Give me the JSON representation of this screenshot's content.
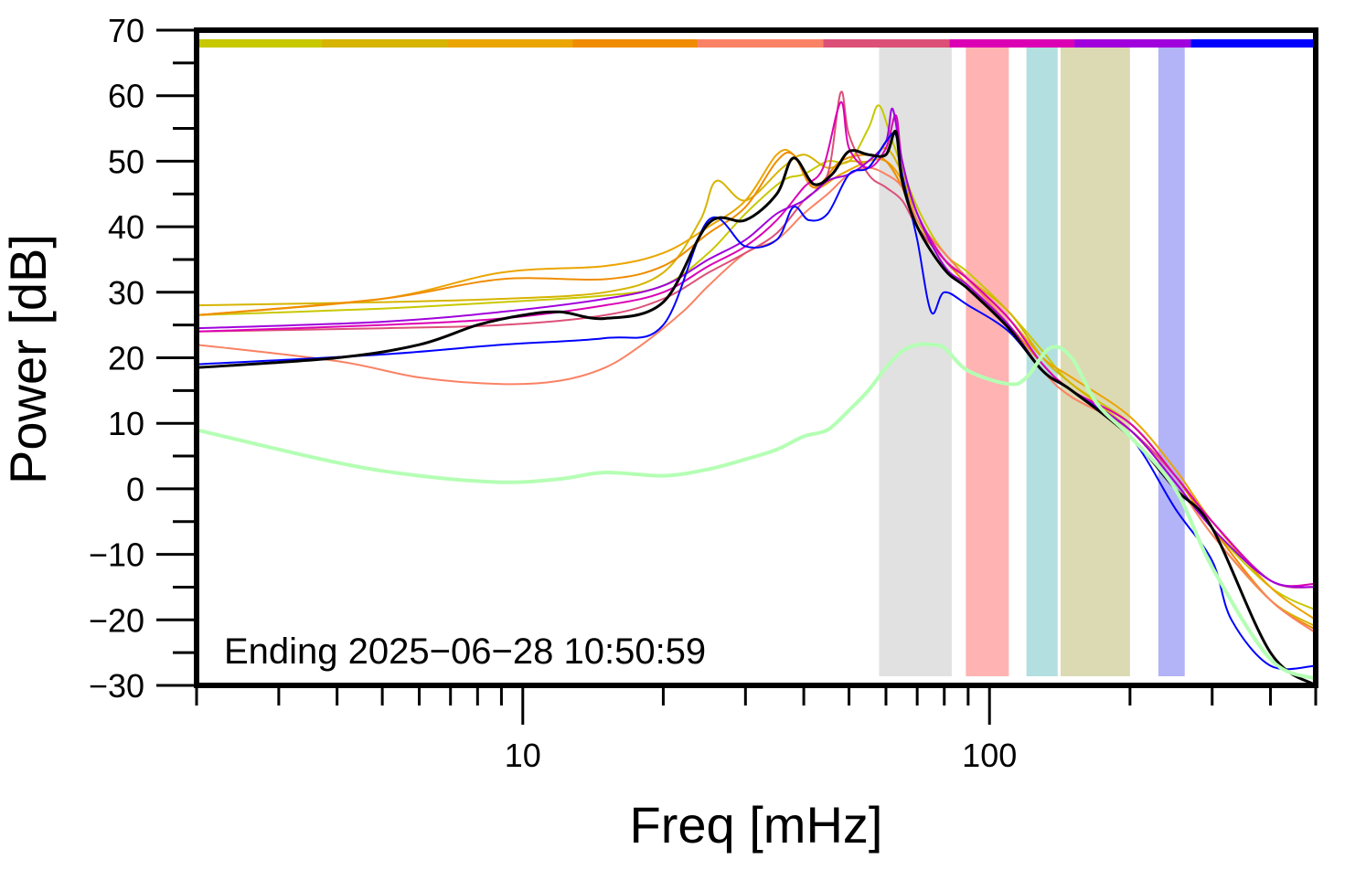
{
  "chart_data": {
    "type": "line",
    "xscale": "log",
    "xlim": [
      2,
      500
    ],
    "ylim": [
      -30,
      70
    ],
    "xlabel": "Freq [mHz]",
    "ylabel": "Power [dB]",
    "annotation": "Ending 2025−06−28 10:50:59",
    "grid": false,
    "x_tick_labels": [
      {
        "value": 10,
        "label": "10"
      },
      {
        "value": 100,
        "label": "100"
      }
    ],
    "y_tick_labels": [
      {
        "value": 70,
        "label": "70"
      },
      {
        "value": 60,
        "label": "60"
      },
      {
        "value": 50,
        "label": "50"
      },
      {
        "value": 40,
        "label": "40"
      },
      {
        "value": 30,
        "label": "30"
      },
      {
        "value": 20,
        "label": "20"
      },
      {
        "value": 10,
        "label": "10"
      },
      {
        "value": 0,
        "label": "0"
      },
      {
        "value": -10,
        "label": "−10"
      },
      {
        "value": -20,
        "label": "−20"
      },
      {
        "value": -30,
        "label": "−30"
      }
    ],
    "bands": [
      {
        "x": [
          58,
          83
        ],
        "color": "#e1e1e1"
      },
      {
        "x": [
          89,
          110
        ],
        "color": "#ffb3b3"
      },
      {
        "x": [
          120,
          140
        ],
        "color": "#b3dfe0"
      },
      {
        "x": [
          142,
          200
        ],
        "color": "#dcdab3"
      },
      {
        "x": [
          230,
          262
        ],
        "color": "#b3b3f7"
      }
    ],
    "top_bar": [
      {
        "x": [
          2,
          3.7
        ],
        "color": "#c8c800"
      },
      {
        "x": [
          3.7,
          6.9
        ],
        "color": "#d6b400"
      },
      {
        "x": [
          6.9,
          12.8
        ],
        "color": "#eba500"
      },
      {
        "x": [
          12.8,
          23.7
        ],
        "color": "#f08c00"
      },
      {
        "x": [
          23.7,
          44
        ],
        "color": "#fa8264"
      },
      {
        "x": [
          44,
          82
        ],
        "color": "#dc5078"
      },
      {
        "x": [
          82,
          152
        ],
        "color": "#dc00b4"
      },
      {
        "x": [
          152,
          270
        ],
        "color": "#a000dc"
      },
      {
        "x": [
          270,
          500
        ],
        "color": "#0000ff"
      }
    ],
    "series": [
      {
        "color": "#c8c800",
        "width": 2,
        "x": [
          2,
          5,
          9,
          15,
          20,
          25,
          30,
          36,
          40,
          45,
          50,
          55,
          58,
          62,
          70,
          80,
          90,
          110,
          130,
          150,
          200,
          250,
          300,
          400,
          500
        ],
        "y": [
          26.5,
          27.5,
          28.5,
          29.5,
          31,
          36,
          42,
          47,
          48,
          50,
          50,
          55,
          58.5,
          53,
          43,
          36,
          33,
          27,
          21,
          16,
          10,
          2,
          -6,
          -15,
          -18.5
        ]
      },
      {
        "color": "#d6b400",
        "width": 2,
        "x": [
          2,
          5,
          9,
          15,
          20,
          24,
          26,
          30,
          36,
          40,
          45,
          50,
          55,
          60,
          65,
          70,
          80,
          90,
          110,
          130,
          150,
          200,
          250,
          300,
          400,
          500
        ],
        "y": [
          28,
          28.5,
          29,
          30,
          33,
          41,
          47,
          44,
          49,
          51,
          49,
          50,
          50,
          52,
          48,
          41,
          35,
          32,
          27,
          20,
          16,
          9,
          1,
          -7,
          -17,
          -21
        ]
      },
      {
        "color": "#eba500",
        "width": 2,
        "x": [
          2,
          5,
          9,
          15,
          20,
          25,
          30,
          35,
          38,
          42,
          48,
          55,
          60,
          65,
          70,
          80,
          90,
          110,
          130,
          150,
          200,
          250,
          300,
          400,
          500
        ],
        "y": [
          26.5,
          29,
          33,
          34,
          36,
          40,
          44,
          51,
          51,
          46,
          48,
          50,
          50,
          47,
          41,
          36,
          32,
          26,
          20,
          17,
          11,
          3,
          -5,
          -15,
          -20
        ]
      },
      {
        "color": "#f08c00",
        "width": 2,
        "x": [
          2,
          5,
          9,
          15,
          20,
          25,
          30,
          35,
          38,
          42,
          48,
          55,
          60,
          65,
          70,
          80,
          90,
          110,
          130,
          150,
          200,
          250,
          300,
          400,
          500
        ],
        "y": [
          26.5,
          29,
          32,
          32,
          34,
          39,
          43,
          50,
          51,
          46,
          50,
          51,
          50,
          46,
          40,
          35,
          31,
          25,
          19,
          15,
          10,
          2,
          -6,
          -17,
          -21.5
        ]
      },
      {
        "color": "#fa8264",
        "width": 2,
        "x": [
          2,
          4,
          6,
          9,
          12,
          15,
          18,
          22,
          25,
          30,
          35,
          40,
          45,
          50,
          55,
          60,
          65,
          70,
          80,
          90,
          110,
          130,
          150,
          200,
          250,
          300,
          400,
          500
        ],
        "y": [
          22,
          19.5,
          17,
          16,
          16.5,
          18.5,
          22,
          27,
          31,
          36,
          38,
          42,
          45,
          48,
          49,
          48,
          46,
          41,
          36,
          32,
          25,
          18,
          14,
          9,
          1,
          -7,
          -17,
          -22
        ]
      },
      {
        "color": "#dc5078",
        "width": 2,
        "x": [
          2,
          5,
          9,
          15,
          20,
          25,
          30,
          35,
          40,
          45,
          48,
          50,
          55,
          60,
          65,
          70,
          80,
          90,
          110,
          130,
          150,
          200,
          250,
          300,
          400,
          500
        ],
        "y": [
          24,
          24.5,
          25,
          26.5,
          29,
          33,
          36,
          39,
          44,
          48,
          60.5,
          54,
          48,
          46,
          44,
          40,
          35,
          32,
          26,
          19,
          15,
          9,
          2,
          -5,
          -14,
          -15
        ]
      },
      {
        "color": "#dc00b4",
        "width": 2,
        "x": [
          2,
          5,
          9,
          15,
          20,
          25,
          30,
          35,
          40,
          44,
          48,
          50,
          55,
          60,
          63,
          65,
          70,
          80,
          90,
          110,
          130,
          150,
          200,
          250,
          300,
          400,
          500
        ],
        "y": [
          24,
          25,
          26,
          28,
          30,
          34,
          37,
          41,
          46,
          49,
          59,
          52,
          49,
          52,
          57,
          50,
          42,
          35,
          32,
          26,
          19,
          15,
          10,
          2,
          -5,
          -14,
          -14.5
        ]
      },
      {
        "color": "#a000dc",
        "width": 2,
        "x": [
          2,
          5,
          9,
          15,
          20,
          25,
          30,
          35,
          40,
          45,
          50,
          55,
          60,
          62,
          65,
          70,
          80,
          90,
          110,
          130,
          150,
          200,
          250,
          300,
          400,
          500
        ],
        "y": [
          24.5,
          25.5,
          27,
          29,
          31,
          35,
          38,
          42,
          44,
          47,
          48,
          50,
          53,
          58,
          50,
          42,
          34,
          31,
          25,
          18,
          15,
          9,
          1,
          -6,
          -14,
          -15
        ]
      },
      {
        "color": "#0000ff",
        "width": 2,
        "x": [
          2,
          5,
          9,
          15,
          20,
          25,
          30,
          35,
          38,
          41,
          45,
          50,
          55,
          60,
          63,
          65,
          70,
          75,
          80,
          90,
          110,
          130,
          150,
          200,
          250,
          300,
          330,
          400,
          500
        ],
        "y": [
          19,
          20.5,
          22,
          23,
          25,
          41,
          37,
          38,
          43,
          41,
          42,
          48,
          49,
          53,
          54,
          48,
          38,
          27,
          30,
          28,
          24,
          18,
          15,
          8,
          -3,
          -11,
          -20,
          -27,
          -27
        ]
      },
      {
        "color": "#000000",
        "width": 3,
        "x": [
          2,
          4,
          6,
          8,
          10,
          12,
          15,
          20,
          25,
          30,
          35,
          38,
          42,
          46,
          50,
          55,
          60,
          63,
          65,
          70,
          80,
          90,
          110,
          130,
          150,
          200,
          250,
          300,
          400,
          500
        ],
        "y": [
          18.5,
          20,
          22,
          25,
          26.5,
          27,
          26,
          28.5,
          40.5,
          41,
          45,
          50.5,
          46.5,
          48,
          51.5,
          51,
          51,
          54.5,
          47,
          40,
          33.5,
          30.5,
          24.5,
          18,
          15,
          8,
          0,
          -6,
          -25,
          -31
        ]
      },
      {
        "color": "#b4ffb4",
        "width": 4,
        "x": [
          2,
          4,
          6,
          9,
          12,
          15,
          20,
          25,
          30,
          35,
          40,
          45,
          50,
          55,
          60,
          65,
          70,
          75,
          80,
          90,
          110,
          120,
          135,
          150,
          170,
          200,
          250,
          300,
          400,
          500
        ],
        "y": [
          9,
          4,
          2,
          1,
          1.5,
          2.5,
          2,
          3,
          4.5,
          6,
          8,
          9,
          12,
          15,
          18.5,
          21,
          22,
          22,
          21.5,
          18,
          16,
          17,
          21.5,
          20,
          13,
          8,
          0,
          -12,
          -26,
          -29
        ]
      }
    ]
  }
}
